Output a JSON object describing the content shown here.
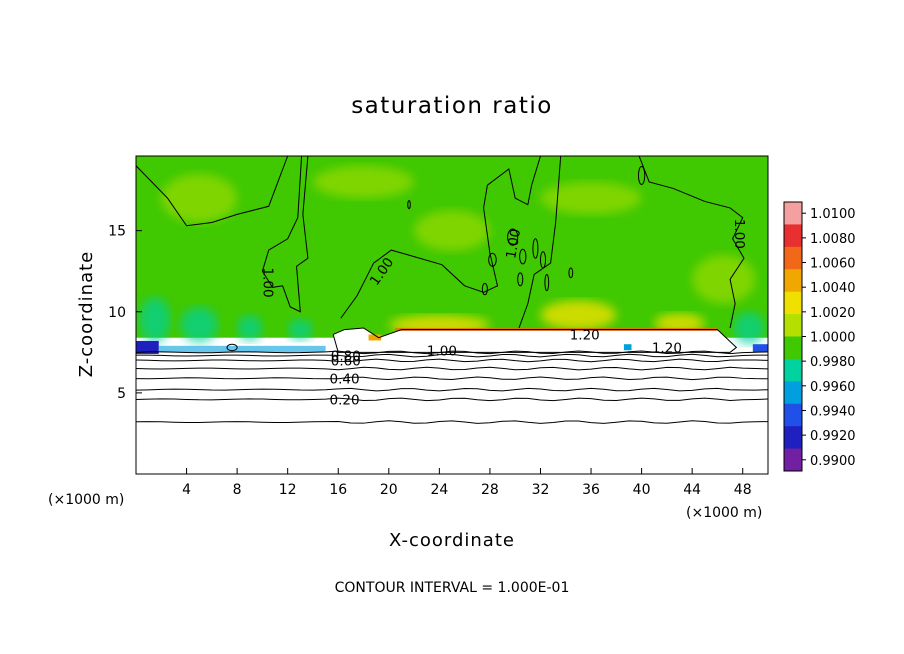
{
  "chart_data": {
    "type": "heatmap",
    "title": "saturation ratio",
    "xlabel": "X-coordinate",
    "ylabel": "Z-coordinate",
    "x_unit": "(×1000 m)",
    "z_unit": "(×1000 m)",
    "xlim": [
      0,
      50
    ],
    "ylim": [
      0,
      19.6
    ],
    "x_ticks": [
      4,
      8,
      12,
      16,
      20,
      24,
      28,
      32,
      36,
      40,
      44,
      48
    ],
    "y_ticks": [
      5,
      10,
      15
    ],
    "contour_interval_text": "CONTOUR INTERVAL = 1.000E-01",
    "colorbar": {
      "levels": [
        "1.0100",
        "1.0080",
        "1.0060",
        "1.0040",
        "1.0020",
        "1.0000",
        "0.9980",
        "0.9960",
        "0.9940",
        "0.9920",
        "0.9900"
      ],
      "colors": [
        "#f4a0a0",
        "#e83030",
        "#f06818",
        "#f0a800",
        "#f0e000",
        "#b4e000",
        "#40c800",
        "#00d2a0",
        "#00a0e0",
        "#2050e8",
        "#2020c0",
        "#7020a0"
      ]
    },
    "contour_labels": [
      {
        "text": "0.20",
        "x": 16.5,
        "z": 4.6
      },
      {
        "text": "0.40",
        "x": 16.5,
        "z": 5.9
      },
      {
        "text": "0.60",
        "x": 16.6,
        "z": 7.0
      },
      {
        "text": "0.80",
        "x": 16.6,
        "z": 7.3
      },
      {
        "text": "1.00",
        "x": 24.2,
        "z": 7.6
      },
      {
        "text": "1.20",
        "x": 35.5,
        "z": 8.6
      },
      {
        "text": "1.20",
        "x": 42.0,
        "z": 7.8
      },
      {
        "text": "1.00",
        "x": 10.5,
        "z": 11.8
      },
      {
        "text": "1.00",
        "x": 19.4,
        "z": 12.5
      },
      {
        "text": "1.00",
        "x": 29.8,
        "z": 14.2
      },
      {
        "text": "1.00",
        "x": 47.8,
        "z": 14.8
      }
    ]
  }
}
